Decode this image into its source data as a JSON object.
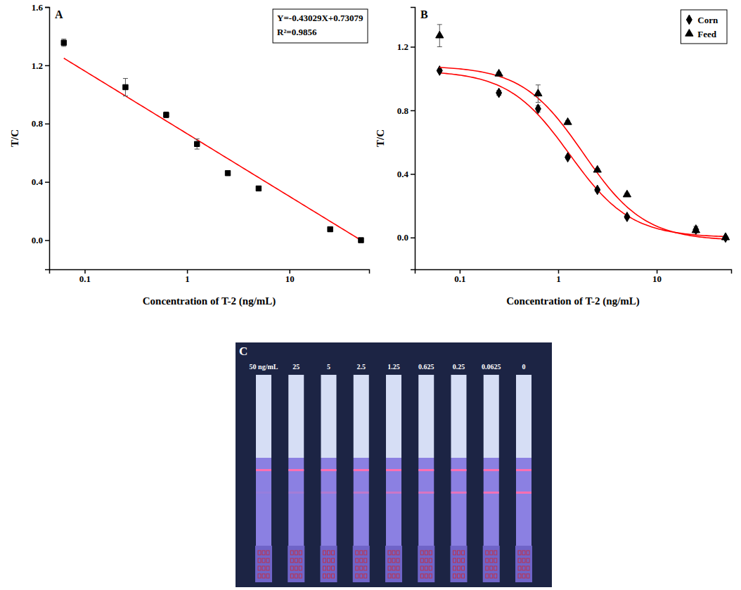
{
  "chart_data": [
    {
      "type": "scatter",
      "label": "A",
      "log": "x",
      "x_label": "Concentration of T-2 (ng/mL)",
      "y_label": "T/C",
      "x": [
        0.0625,
        0.25,
        0.625,
        1.25,
        2.5,
        5,
        25,
        50
      ],
      "values": [
        1.355,
        1.05,
        0.86,
        0.66,
        0.46,
        0.355,
        0.075,
        0.0
      ],
      "errors": [
        0.025,
        0.06,
        0.02,
        0.035,
        0.015,
        0.015,
        0.015,
        0.01
      ],
      "marker": "square",
      "color": "#000000",
      "fit": {
        "slope": -0.43029,
        "intercept": 0.73079
      },
      "annotations": [
        "Y=-0.43029X+0.73079",
        "R²=0.9856"
      ],
      "xlim": [
        0.045,
        60
      ],
      "xticks": [
        0.1,
        1,
        10
      ],
      "ylim": [
        -0.2,
        1.6
      ],
      "yticks": [
        {
          "value": 0,
          "label": "0.0"
        },
        0.4,
        0.8,
        1.2,
        1.6
      ]
    },
    {
      "type": "scatter",
      "label": "B",
      "log": "x",
      "legend": "top-right",
      "x_label": "Concentration of T-2 (ng/mL)",
      "y_label": "T/C",
      "x": [
        0.0625,
        0.25,
        0.625,
        1.25,
        2.5,
        5,
        25,
        50
      ],
      "series": [
        {
          "name": "Corn",
          "marker": "diamond",
          "color": "#000000",
          "values": [
            1.05,
            0.91,
            0.81,
            0.505,
            0.3,
            0.13,
            0.05,
            0.0
          ],
          "errors": [
            0.01,
            0.015,
            0.02,
            0.01,
            0.01,
            0.01,
            0.02,
            0.005
          ],
          "fit": {
            "top": 1.05,
            "bottom": 0.0,
            "ic50": 1.3,
            "hill": 1.4
          }
        },
        {
          "name": "Feed",
          "marker": "triangle",
          "color": "#000000",
          "values": [
            1.27,
            1.03,
            0.905,
            0.725,
            0.425,
            0.27,
            0.045,
            0.0
          ],
          "errors": [
            0.07,
            0.01,
            0.055,
            0.01,
            0.01,
            0.01,
            0.01,
            0.005
          ],
          "fit": {
            "top": 1.08,
            "bottom": -0.02,
            "ic50": 1.8,
            "hill": 1.4
          }
        }
      ],
      "xlim": [
        0.035,
        57
      ],
      "xticks": [
        0.1,
        1,
        10
      ],
      "ylim": [
        -0.2,
        1.45
      ],
      "yticks": [
        {
          "value": 0,
          "label": "0.0"
        },
        0.4,
        0.8,
        1.2
      ]
    }
  ],
  "photo": {
    "label": "C",
    "strip_labels": [
      "50 ng/mL",
      "25",
      "5",
      "2.5",
      "1.25",
      "0.625",
      "0.25",
      "0.0625",
      "0"
    ]
  }
}
